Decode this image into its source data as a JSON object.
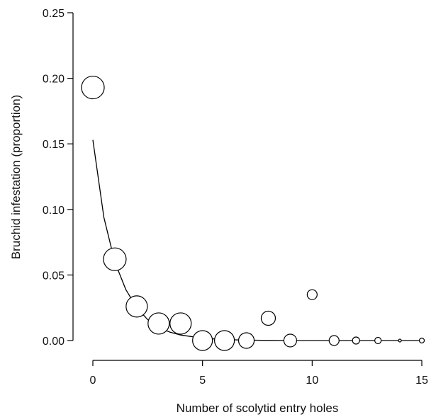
{
  "chart_data": {
    "type": "scatter",
    "xlabel": "Number of scolytid entry holes",
    "ylabel": "Bruchid infestation (proportion)",
    "xlim": [
      0,
      15
    ],
    "ylim": [
      0,
      0.25
    ],
    "x_ticks": [
      0,
      5,
      10,
      15
    ],
    "x_tick_labels": [
      "0",
      "5",
      "10",
      "15"
    ],
    "y_ticks": [
      0,
      0.05,
      0.1,
      0.15,
      0.2,
      0.25
    ],
    "y_tick_labels": [
      "0.00",
      "0.05",
      "0.10",
      "0.15",
      "0.20",
      "0.25"
    ],
    "grid": false,
    "legend": "none",
    "marker": "open circle, size proportional to sample size",
    "points": [
      {
        "x": 0,
        "y": 0.193,
        "size": 16
      },
      {
        "x": 1,
        "y": 0.062,
        "size": 16
      },
      {
        "x": 2,
        "y": 0.026,
        "size": 15
      },
      {
        "x": 3,
        "y": 0.013,
        "size": 15
      },
      {
        "x": 4,
        "y": 0.013,
        "size": 15
      },
      {
        "x": 5,
        "y": 0.0,
        "size": 14
      },
      {
        "x": 6,
        "y": 0.0,
        "size": 14
      },
      {
        "x": 7,
        "y": 0.0,
        "size": 11
      },
      {
        "x": 8,
        "y": 0.017,
        "size": 10
      },
      {
        "x": 9,
        "y": 0.0,
        "size": 9
      },
      {
        "x": 10,
        "y": 0.035,
        "size": 7
      },
      {
        "x": 11,
        "y": 0.0,
        "size": 7
      },
      {
        "x": 12,
        "y": 0.0,
        "size": 5
      },
      {
        "x": 13,
        "y": 0.0,
        "size": 4.5
      },
      {
        "x": 14,
        "y": 0.0,
        "size": 2
      },
      {
        "x": 15,
        "y": 0.0,
        "size": 3.5
      }
    ],
    "fit_curve": {
      "type": "exponential decay",
      "x": [
        0,
        0.5,
        1,
        1.5,
        2,
        2.5,
        3,
        3.5,
        4,
        5,
        6,
        7,
        8,
        9,
        10,
        12,
        15
      ],
      "y": [
        0.153,
        0.094,
        0.06,
        0.039,
        0.025,
        0.016,
        0.01,
        0.0065,
        0.0042,
        0.0018,
        0.0007,
        0.0003,
        0.0001,
        0.0,
        0.0,
        0.0,
        0.0
      ]
    }
  }
}
